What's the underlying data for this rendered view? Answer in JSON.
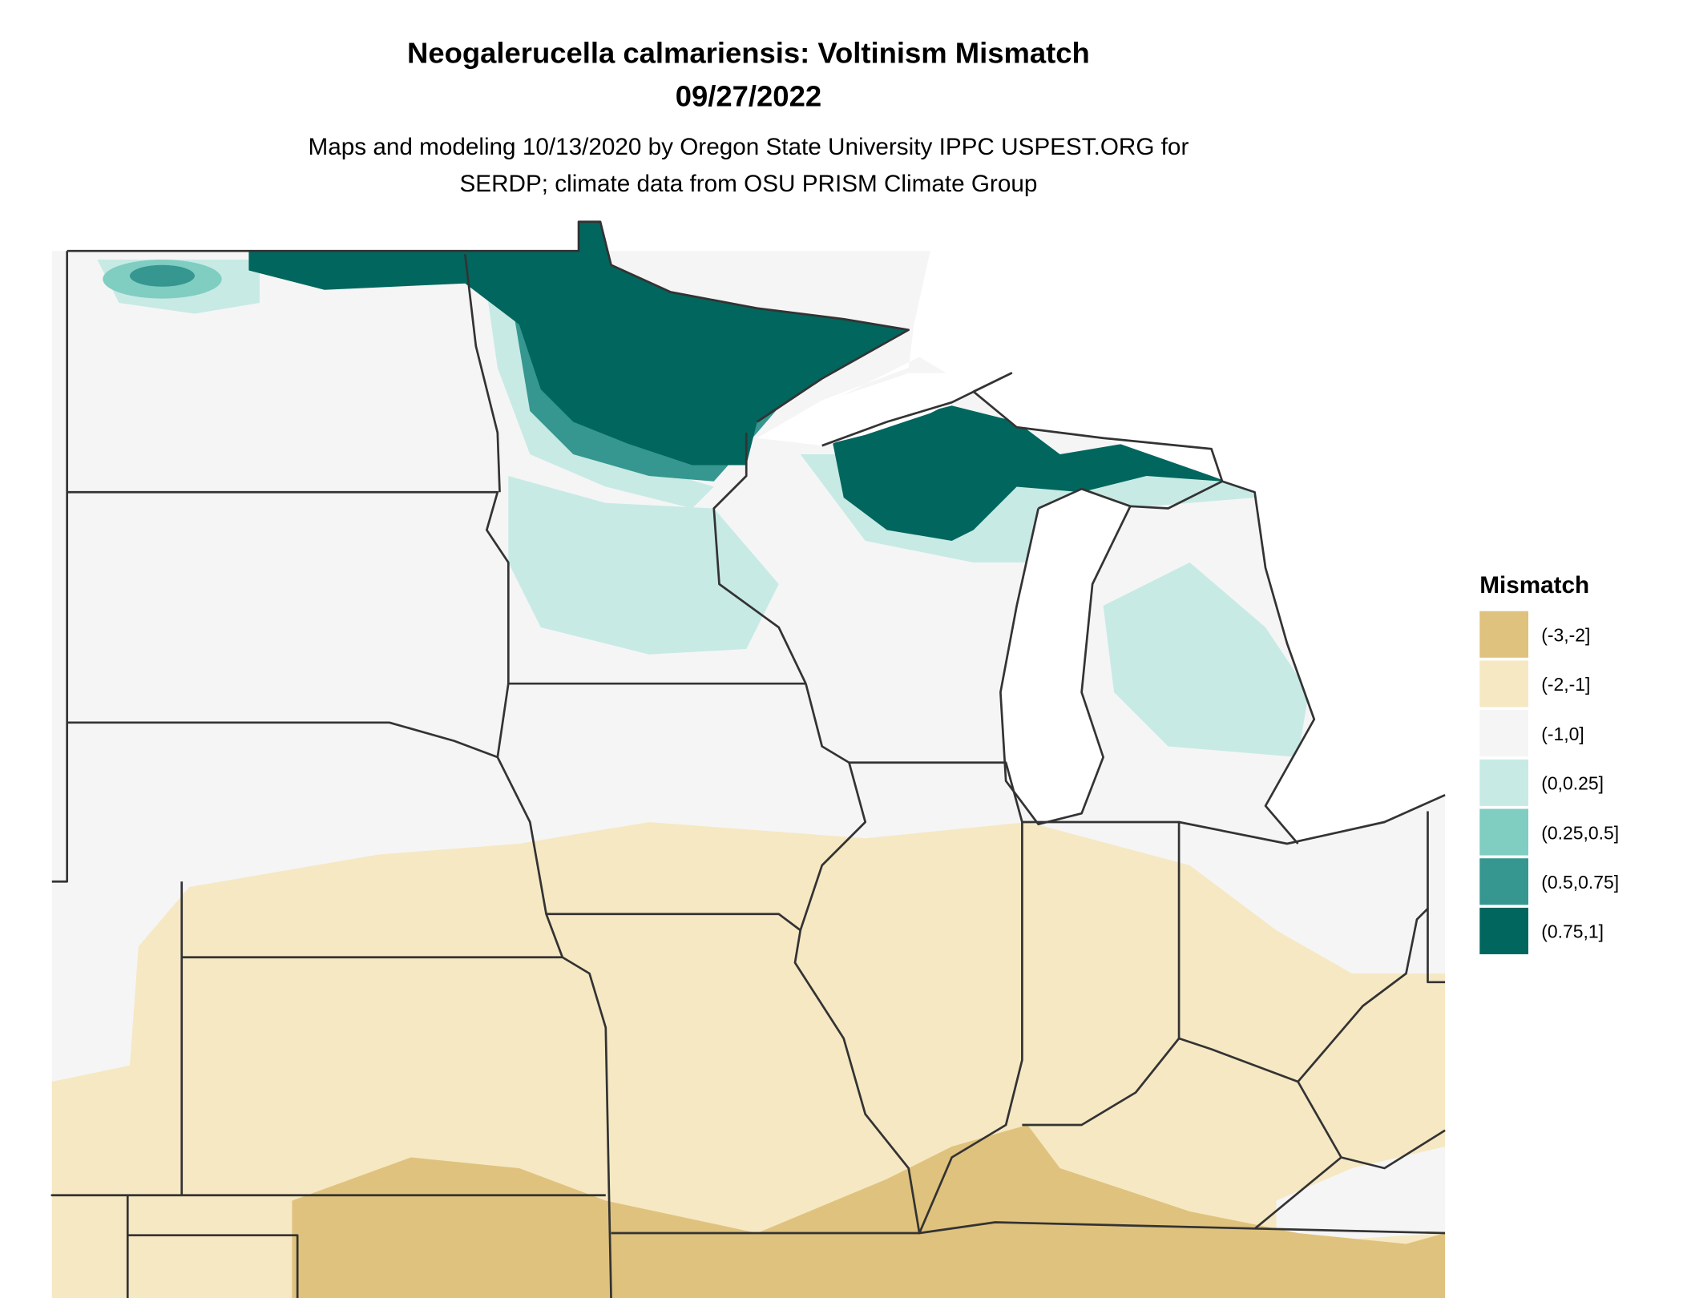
{
  "title": [
    "Neogalerucella calmariensis: Voltinism Mismatch",
    "09/27/2022"
  ],
  "subtitle": [
    "Maps and modeling 10/13/2020 by Oregon State University IPPC USPEST.ORG for",
    "SERDP; climate data from OSU PRISM Climate Group"
  ],
  "legend": {
    "title": "Mismatch",
    "items": [
      {
        "label": "(-3,-2]",
        "color": "#dfc27d"
      },
      {
        "label": "(-2,-1]",
        "color": "#f6e8c3"
      },
      {
        "label": "(-1,0]",
        "color": "#f5f5f5"
      },
      {
        "label": "(0,0.25]",
        "color": "#c7eae5"
      },
      {
        "label": "(0.25,0.5]",
        "color": "#80cdc1"
      },
      {
        "label": "(0.5,0.75]",
        "color": "#35978f"
      },
      {
        "label": "(0.75,1]",
        "color": "#01665e"
      }
    ]
  }
}
